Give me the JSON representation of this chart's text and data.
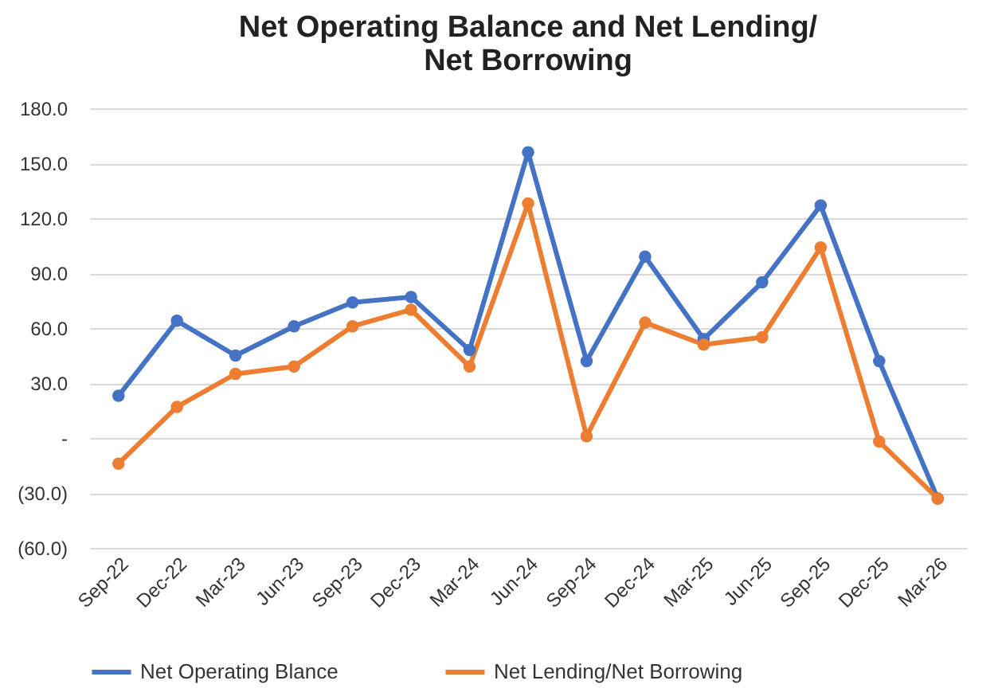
{
  "chart_data": {
    "type": "line",
    "title": "Net Operating Balance and Net Lending/Net Borrowing",
    "categories": [
      "Sep-22",
      "Dec-22",
      "Mar-23",
      "Jun-23",
      "Sep-23",
      "Dec-23",
      "Mar-24",
      "Jun-24",
      "Sep-24",
      "Dec-24",
      "Mar-25",
      "Jun-25",
      "Sep-25",
      "Dec-25",
      "Mar-26"
    ],
    "series": [
      {
        "name": "Net Operating Blance",
        "color": "#4472c4",
        "values": [
          23,
          64,
          45,
          61,
          74,
          77,
          48,
          156,
          42,
          99,
          54,
          85,
          127,
          42,
          -33
        ]
      },
      {
        "name": "Net Lending/Net Borrowing",
        "color": "#ed7d31",
        "values": [
          -14,
          17,
          35,
          39,
          61,
          70,
          39,
          128,
          1,
          63,
          51,
          55,
          104,
          -2,
          -33
        ]
      }
    ],
    "ylim": [
      -60,
      180
    ],
    "yticks": [
      {
        "value": -60,
        "label": "(60.0)"
      },
      {
        "value": -30,
        "label": "(30.0)"
      },
      {
        "value": 0,
        "label": "-"
      },
      {
        "value": 30,
        "label": "30.0"
      },
      {
        "value": 60,
        "label": "60.0"
      },
      {
        "value": 90,
        "label": "90.0"
      },
      {
        "value": 120,
        "label": "120.0"
      },
      {
        "value": 150,
        "label": "150.0"
      },
      {
        "value": 180,
        "label": "180.0"
      }
    ],
    "grid": "y",
    "legend": "bottom",
    "marker": "circle",
    "line_style": "solid"
  }
}
